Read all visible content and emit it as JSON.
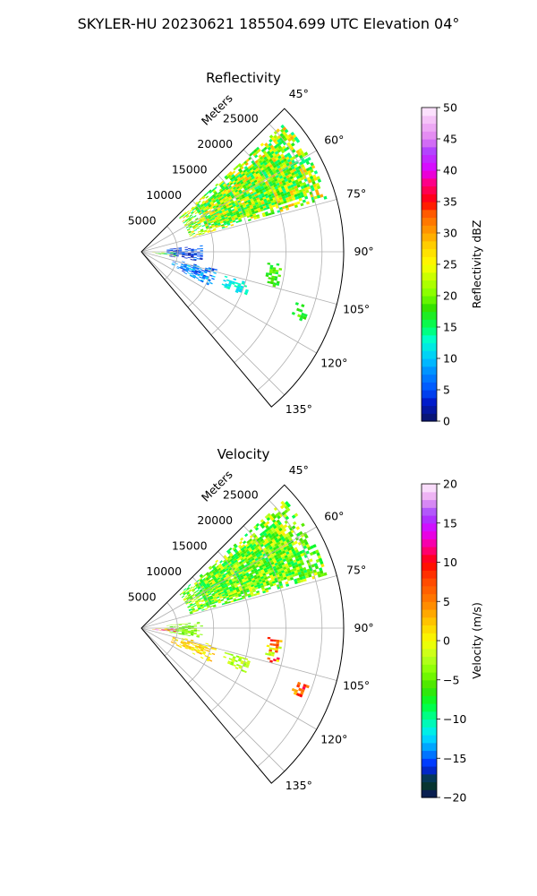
{
  "suptitle": "SKYLER-HU  20230621  185504.699 UTC Elevation 04°",
  "chart_data": [
    {
      "type": "heatmap",
      "projection": "polar-sector",
      "title": "Reflectivity",
      "range_label": "Meters",
      "theta_range_deg": [
        45,
        140
      ],
      "r_max": 28000,
      "radial_ticks": [
        5000,
        10000,
        15000,
        20000,
        25000
      ],
      "radial_tick_labels": [
        "5000",
        "10000",
        "15000",
        "20000",
        "25000"
      ],
      "angle_ticks_deg": [
        45,
        60,
        75,
        90,
        105,
        120,
        135
      ],
      "angle_tick_labels": [
        "45°",
        "60°",
        "75°",
        "90°",
        "105°",
        "120°",
        "135°"
      ],
      "grid": true,
      "colorbar": {
        "label": "Reflectivity dBZ",
        "vmin": 0,
        "vmax": 50,
        "ticks": [
          0,
          5,
          10,
          15,
          20,
          25,
          30,
          35,
          40,
          45,
          50
        ],
        "tick_labels": [
          "0",
          "5",
          "10",
          "15",
          "20",
          "25",
          "30",
          "35",
          "40",
          "45",
          "50"
        ],
        "color_stops": [
          {
            "v": 0,
            "c": "#0a1460"
          },
          {
            "v": 3,
            "c": "#0018c8"
          },
          {
            "v": 5,
            "c": "#0050ff"
          },
          {
            "v": 8,
            "c": "#0090ff"
          },
          {
            "v": 10,
            "c": "#00c8ff"
          },
          {
            "v": 13,
            "c": "#00ffd0"
          },
          {
            "v": 15,
            "c": "#00ff60"
          },
          {
            "v": 18,
            "c": "#30e000"
          },
          {
            "v": 20,
            "c": "#7cff00"
          },
          {
            "v": 23,
            "c": "#c8ff00"
          },
          {
            "v": 25,
            "c": "#ffff00"
          },
          {
            "v": 28,
            "c": "#ffd000"
          },
          {
            "v": 30,
            "c": "#ffa000"
          },
          {
            "v": 33,
            "c": "#ff6000"
          },
          {
            "v": 35,
            "c": "#ff0000"
          },
          {
            "v": 38,
            "c": "#ff0080"
          },
          {
            "v": 40,
            "c": "#e000ff"
          },
          {
            "v": 43,
            "c": "#b040ff"
          },
          {
            "v": 45,
            "c": "#e080f0"
          },
          {
            "v": 48,
            "c": "#f4c0f8"
          },
          {
            "v": 50,
            "c": "#fff0ff"
          }
        ]
      },
      "echo_regions": [
        {
          "theta": [
            48,
            74
          ],
          "r": [
            7000,
            26500
          ],
          "values": [
            14,
            30
          ]
        },
        {
          "theta": [
            84,
            99
          ],
          "r": [
            3500,
            8500
          ],
          "values": [
            1,
            7
          ]
        },
        {
          "theta": [
            103,
            116
          ],
          "r": [
            4500,
            10500
          ],
          "values": [
            3,
            11
          ]
        },
        {
          "theta": [
            91,
            97
          ],
          "r": [
            1500,
            4500
          ],
          "values": [
            3,
            32
          ]
        },
        {
          "theta": [
            94,
            104
          ],
          "r": [
            17500,
            19500
          ],
          "values": [
            16,
            20
          ]
        },
        {
          "theta": [
            108,
            113
          ],
          "r": [
            22500,
            24500
          ],
          "values": [
            16,
            20
          ]
        },
        {
          "theta": [
            106,
            113
          ],
          "r": [
            12000,
            15500
          ],
          "values": [
            10,
            14
          ]
        }
      ]
    },
    {
      "type": "heatmap",
      "projection": "polar-sector",
      "title": "Velocity",
      "range_label": "Meters",
      "theta_range_deg": [
        45,
        140
      ],
      "r_max": 28000,
      "radial_ticks": [
        5000,
        10000,
        15000,
        20000,
        25000
      ],
      "radial_tick_labels": [
        "5000",
        "10000",
        "15000",
        "20000",
        "25000"
      ],
      "angle_ticks_deg": [
        45,
        60,
        75,
        90,
        105,
        120,
        135
      ],
      "angle_tick_labels": [
        "45°",
        "60°",
        "75°",
        "90°",
        "105°",
        "120°",
        "135°"
      ],
      "grid": true,
      "colorbar": {
        "label": "Velocity (m/s)",
        "vmin": -20,
        "vmax": 20,
        "ticks": [
          -20,
          -15,
          -10,
          -5,
          0,
          5,
          10,
          15,
          20
        ],
        "tick_labels": [
          "−20",
          "−15",
          "−10",
          "−5",
          "0",
          "5",
          "10",
          "15",
          "20"
        ],
        "color_stops": [
          {
            "v": -20,
            "c": "#0a1460"
          },
          {
            "v": -18,
            "c": "#064020"
          },
          {
            "v": -16,
            "c": "#0020ff"
          },
          {
            "v": -14,
            "c": "#0090ff"
          },
          {
            "v": -12,
            "c": "#00e8ff"
          },
          {
            "v": -10,
            "c": "#00ffa0"
          },
          {
            "v": -8,
            "c": "#00ff30"
          },
          {
            "v": -6,
            "c": "#40e000"
          },
          {
            "v": -4,
            "c": "#80ff00"
          },
          {
            "v": -2,
            "c": "#c0ff20"
          },
          {
            "v": 0,
            "c": "#f8ff00"
          },
          {
            "v": 2,
            "c": "#ffd000"
          },
          {
            "v": 5,
            "c": "#ff8000"
          },
          {
            "v": 8,
            "c": "#ff4000"
          },
          {
            "v": 10,
            "c": "#ff0000"
          },
          {
            "v": 12,
            "c": "#ff0090"
          },
          {
            "v": 14,
            "c": "#e000ff"
          },
          {
            "v": 16,
            "c": "#a040ff"
          },
          {
            "v": 18,
            "c": "#e8a0f0"
          },
          {
            "v": 20,
            "c": "#fff0ff"
          }
        ]
      },
      "echo_regions": [
        {
          "theta": [
            48,
            74
          ],
          "r": [
            7000,
            26500
          ],
          "values": [
            -9,
            1
          ]
        },
        {
          "theta": [
            84,
            99
          ],
          "r": [
            3500,
            8500
          ],
          "values": [
            -6,
            -2
          ]
        },
        {
          "theta": [
            103,
            116
          ],
          "r": [
            4500,
            10500
          ],
          "values": [
            -1,
            4
          ]
        },
        {
          "theta": [
            91,
            97
          ],
          "r": [
            1500,
            4500
          ],
          "values": [
            0,
            16
          ]
        },
        {
          "theta": [
            94,
            104
          ],
          "r": [
            17500,
            19500
          ],
          "values": [
            -3,
            12
          ]
        },
        {
          "theta": [
            108,
            113
          ],
          "r": [
            22500,
            24500
          ],
          "values": [
            1,
            12
          ]
        },
        {
          "theta": [
            106,
            113
          ],
          "r": [
            12000,
            15500
          ],
          "values": [
            -4,
            -1
          ]
        }
      ]
    }
  ]
}
